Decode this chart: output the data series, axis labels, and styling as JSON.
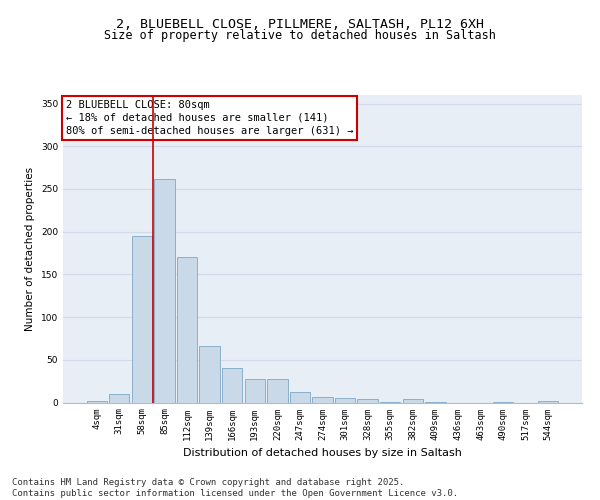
{
  "title_line1": "2, BLUEBELL CLOSE, PILLMERE, SALTASH, PL12 6XH",
  "title_line2": "Size of property relative to detached houses in Saltash",
  "xlabel": "Distribution of detached houses by size in Saltash",
  "ylabel": "Number of detached properties",
  "categories": [
    "4sqm",
    "31sqm",
    "58sqm",
    "85sqm",
    "112sqm",
    "139sqm",
    "166sqm",
    "193sqm",
    "220sqm",
    "247sqm",
    "274sqm",
    "301sqm",
    "328sqm",
    "355sqm",
    "382sqm",
    "409sqm",
    "436sqm",
    "463sqm",
    "490sqm",
    "517sqm",
    "544sqm"
  ],
  "values": [
    2,
    10,
    195,
    262,
    170,
    66,
    40,
    28,
    28,
    12,
    7,
    5,
    4,
    1,
    4,
    1,
    0,
    0,
    1,
    0,
    2
  ],
  "bar_color": "#c9d9e8",
  "bar_edge_color": "#8ab0cc",
  "grid_color": "#d0daea",
  "bg_color": "#e8eef5",
  "annotation_line1": "2 BLUEBELL CLOSE: 80sqm",
  "annotation_line2": "← 18% of detached houses are smaller (141)",
  "annotation_line3": "80% of semi-detached houses are larger (631) →",
  "annotation_box_color": "#cc0000",
  "property_line_x": 2.5,
  "property_line_color": "#cc0000",
  "ylim": [
    0,
    360
  ],
  "yticks": [
    0,
    50,
    100,
    150,
    200,
    250,
    300,
    350
  ],
  "footer_text": "Contains HM Land Registry data © Crown copyright and database right 2025.\nContains public sector information licensed under the Open Government Licence v3.0.",
  "title_fontsize": 9.5,
  "subtitle_fontsize": 8.5,
  "axis_label_fontsize": 8,
  "tick_fontsize": 6.5,
  "annotation_fontsize": 7.5,
  "footer_fontsize": 6.5,
  "ylabel_fontsize": 7.5
}
